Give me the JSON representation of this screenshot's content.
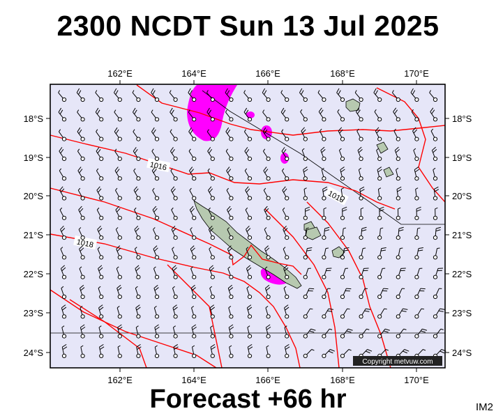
{
  "title": "2300 NCDT Sun 13 Jul 2025",
  "footer": "Forecast +66 hr",
  "corner_code": "IM2",
  "copyright": "Copyright metvuw.com",
  "lon_labels": [
    "162°E",
    "164°E",
    "166°E",
    "168°E",
    "170°E"
  ],
  "lat_labels": [
    "18°S",
    "19°S",
    "20°S",
    "21°S",
    "22°S",
    "23°S",
    "24°S"
  ],
  "contour_labels": [
    "1016",
    "1016",
    "1018"
  ],
  "colors": {
    "ocean": "#e6e6f8",
    "isobar": "#ff0000",
    "rain": "#ff00ff",
    "land": "#b7c9b0",
    "barb": "#000000"
  }
}
